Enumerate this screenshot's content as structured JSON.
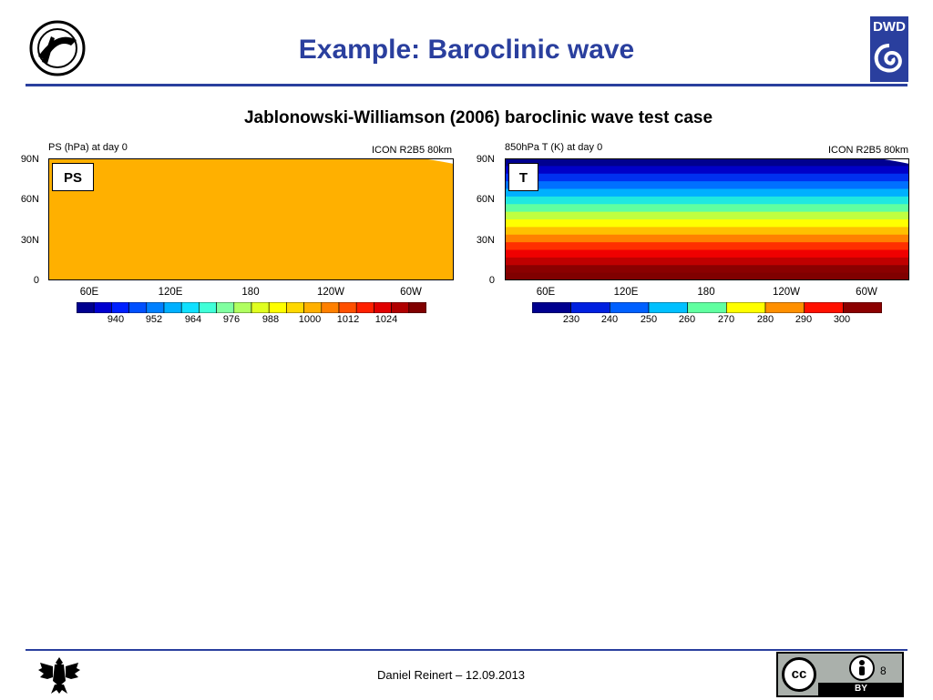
{
  "header": {
    "title": "Example: Baroclinic wave",
    "logo_left": "org-emblem-logo",
    "logo_right": "DWD"
  },
  "subtitle": "Jablonowski-Williamson (2006) baroclinic wave test case",
  "panels": {
    "ps": {
      "title": "PS (hPa) at day 0",
      "model": "ICON R2B5 80km",
      "tag": "PS",
      "y_ticks": [
        "90N",
        "60N",
        "30N",
        "0"
      ],
      "x_ticks": [
        "60E",
        "120E",
        "180",
        "120W",
        "60W"
      ],
      "colorbar_labels": [
        "940",
        "952",
        "964",
        "976",
        "988",
        "1000",
        "1012",
        "1024"
      ]
    },
    "t": {
      "title": "850hPa T (K) at day 0",
      "model": "ICON R2B5 80km",
      "tag": "T",
      "y_ticks": [
        "90N",
        "60N",
        "30N",
        "0"
      ],
      "x_ticks": [
        "60E",
        "120E",
        "180",
        "120W",
        "60W"
      ],
      "colorbar_labels": [
        "230",
        "240",
        "250",
        "260",
        "270",
        "280",
        "290",
        "300"
      ]
    }
  },
  "colors": {
    "accent": "#2a3f9e",
    "ps_fill": "#ffb000",
    "ps_scale": [
      "#00008f",
      "#0000d0",
      "#0020ff",
      "#0050ff",
      "#0080ff",
      "#00b0ff",
      "#10e0ff",
      "#40ffd8",
      "#80ffa0",
      "#b0ff60",
      "#e0ff20",
      "#ffff00",
      "#ffd800",
      "#ffb000",
      "#ff8000",
      "#ff5000",
      "#ff2000",
      "#e00000",
      "#b00000",
      "#800000"
    ],
    "t_scale": [
      "#00008f",
      "#0020e0",
      "#0060ff",
      "#00c0ff",
      "#60ffa0",
      "#ffff00",
      "#ff9000",
      "#ff1000",
      "#8b0000"
    ],
    "t_bands": [
      "#00008f",
      "#0000c8",
      "#0030f0",
      "#0070ff",
      "#00b0ff",
      "#20e8e0",
      "#60ffa0",
      "#c0ff40",
      "#ffff00",
      "#ffc000",
      "#ff8000",
      "#ff3000",
      "#f00000",
      "#c00000",
      "#8b0000",
      "#800000"
    ]
  },
  "footer": {
    "author_date": "Daniel Reinert – 12.09.2013",
    "page": "8",
    "license": "BY",
    "footer_logo": "federal-eagle-logo"
  }
}
